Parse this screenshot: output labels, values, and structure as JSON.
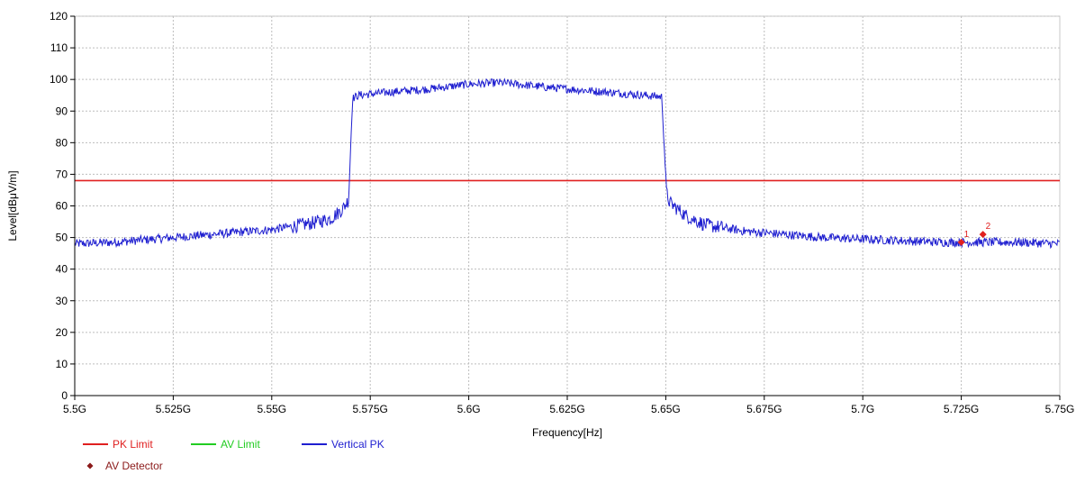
{
  "chart_data": {
    "type": "line",
    "title": "",
    "xlabel": "Frequency[Hz]",
    "ylabel": "Level[dBμV/m]",
    "xlim": [
      5.5,
      5.75
    ],
    "ylim": [
      0,
      120
    ],
    "grid": true,
    "legend_position": "bottom-left",
    "x_ticks": [
      5.5,
      5.525,
      5.55,
      5.575,
      5.6,
      5.625,
      5.65,
      5.675,
      5.7,
      5.725,
      5.75
    ],
    "x_tick_labels": [
      "5.5G",
      "5.525G",
      "5.55G",
      "5.575G",
      "5.6G",
      "5.625G",
      "5.65G",
      "5.675G",
      "5.7G",
      "5.725G",
      "5.75G"
    ],
    "y_ticks": [
      0,
      10,
      20,
      30,
      40,
      50,
      60,
      70,
      80,
      90,
      100,
      110,
      120
    ],
    "y_tick_labels": [
      "0",
      "10",
      "20",
      "30",
      "40",
      "50",
      "60",
      "70",
      "80",
      "90",
      "100",
      "110",
      "120"
    ],
    "series": [
      {
        "name": "PK Limit",
        "color": "#e02020",
        "kind": "hline",
        "y": 68
      },
      {
        "name": "AV Limit",
        "color": "#22cc22",
        "kind": "legend-only"
      },
      {
        "name": "Vertical PK",
        "color": "#1f1fd0",
        "kind": "line",
        "x": [
          5.5,
          5.51,
          5.52,
          5.53,
          5.54,
          5.55,
          5.555,
          5.56,
          5.565,
          5.568,
          5.5695,
          5.5705,
          5.572,
          5.58,
          5.59,
          5.6,
          5.608,
          5.612,
          5.62,
          5.63,
          5.64,
          5.649,
          5.6502,
          5.651,
          5.655,
          5.66,
          5.67,
          5.68,
          5.69,
          5.7,
          5.71,
          5.72,
          5.73,
          5.74,
          5.75
        ],
        "y": [
          48,
          48.5,
          49.5,
          50.5,
          51.5,
          52.5,
          53.5,
          54.5,
          56,
          59,
          62,
          94,
          95,
          96,
          97,
          98.5,
          99,
          98.5,
          97.5,
          96.5,
          95.5,
          94.5,
          64,
          61,
          57,
          54,
          52,
          51,
          50,
          49.5,
          49,
          48.5,
          48.5,
          48.5,
          48
        ]
      },
      {
        "name": "AV Detector",
        "color": "#8b1a1a",
        "kind": "markers"
      }
    ],
    "markers": [
      {
        "label": "1",
        "x": 5.725,
        "y": 48.5,
        "color": "#e02020"
      },
      {
        "label": "2",
        "x": 5.7305,
        "y": 51,
        "color": "#e02020"
      }
    ],
    "legend": [
      {
        "label": "PK Limit",
        "color": "#e02020",
        "symbol": "line"
      },
      {
        "label": "AV Limit",
        "color": "#22cc22",
        "symbol": "line"
      },
      {
        "label": "Vertical PK",
        "color": "#1f1fd0",
        "symbol": "line"
      },
      {
        "label": "AV Detector",
        "color": "#8b1a1a",
        "symbol": "diamond"
      }
    ]
  }
}
